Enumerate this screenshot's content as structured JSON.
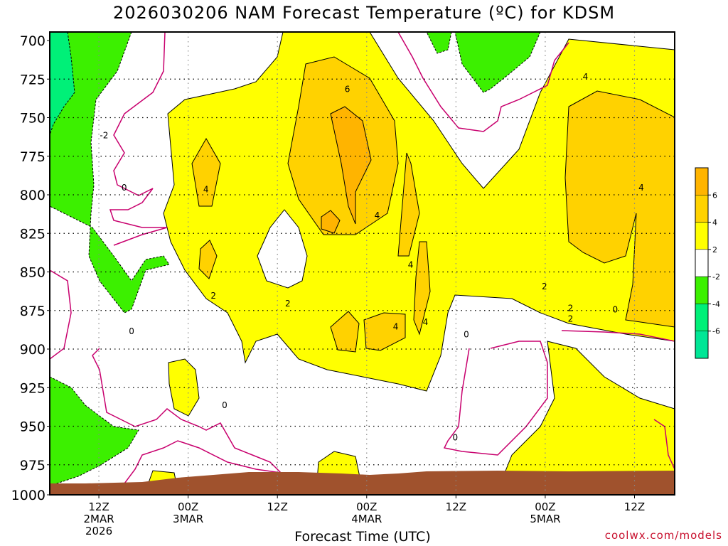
{
  "chart_data": {
    "type": "heatmap",
    "title": "2026030206 NAM Forecast Temperature (ºC) for KDSM",
    "xlabel": "Forecast Time (UTC)",
    "ylabel": "",
    "credit": "coolwx.com/models",
    "y_axis": {
      "type": "pressure (hPa)",
      "range": [
        1000,
        700
      ],
      "inverted": true,
      "ticks": [
        700,
        725,
        750,
        775,
        800,
        825,
        850,
        875,
        900,
        925,
        950,
        975,
        1000
      ]
    },
    "x_axis": {
      "range_hours": [
        0,
        84
      ],
      "ticks": [
        {
          "hour": 6,
          "label1": "12Z",
          "label2": "2MAR",
          "label3": "2026"
        },
        {
          "hour": 18,
          "label1": "00Z",
          "label2": "3MAR",
          "label3": ""
        },
        {
          "hour": 30,
          "label1": "12Z",
          "label2": "",
          "label3": ""
        },
        {
          "hour": 42,
          "label1": "00Z",
          "label2": "4MAR",
          "label3": ""
        },
        {
          "hour": 54,
          "label1": "12Z",
          "label2": "",
          "label3": ""
        },
        {
          "hour": 66,
          "label1": "00Z",
          "label2": "5MAR",
          "label3": ""
        },
        {
          "hour": 78,
          "label1": "12Z",
          "label2": "",
          "label3": ""
        }
      ]
    },
    "grid": true,
    "legend": {
      "placement": "right",
      "labels": [
        "6",
        "4",
        "2",
        "-2",
        "-4",
        "-6"
      ],
      "colors": [
        "#ffb400",
        "#ffd200",
        "#ffff00",
        "#ffffff",
        "#3cf000",
        "#00f078",
        "#00e696"
      ]
    },
    "contour_labels": [
      {
        "t": 7.3,
        "p": 767,
        "text": "-2"
      },
      {
        "t": 10,
        "p": 801,
        "text": "0"
      },
      {
        "t": 11,
        "p": 894,
        "text": "0"
      },
      {
        "t": 21,
        "p": 802,
        "text": "4"
      },
      {
        "t": 22,
        "p": 871,
        "text": "2"
      },
      {
        "t": 23.5,
        "p": 942,
        "text": "0"
      },
      {
        "t": 32,
        "p": 876,
        "text": "2"
      },
      {
        "t": 40,
        "p": 737,
        "text": "6"
      },
      {
        "t": 44,
        "p": 819,
        "text": "4"
      },
      {
        "t": 46.5,
        "p": 891,
        "text": "4"
      },
      {
        "t": 48.5,
        "p": 851,
        "text": "4"
      },
      {
        "t": 50.5,
        "p": 888,
        "text": "4"
      },
      {
        "t": 56,
        "p": 896,
        "text": "0"
      },
      {
        "t": 54.5,
        "p": 963,
        "text": "0"
      },
      {
        "t": 66.5,
        "p": 865,
        "text": "2"
      },
      {
        "t": 70,
        "p": 879,
        "text": "2"
      },
      {
        "t": 70,
        "p": 886,
        "text": "2"
      },
      {
        "t": 72,
        "p": 729,
        "text": "4"
      },
      {
        "t": 76,
        "p": 880,
        "text": "0"
      },
      {
        "t": 79.5,
        "p": 801,
        "text": "4"
      }
    ],
    "temperature_regions": [
      {
        "band": "-2 to -4",
        "description": "cold pocket top-left 700–875 hPa, hours 0–15",
        "color": "#3cf000"
      },
      {
        "band": "-2 to -4",
        "description": "near-surface cold pocket 925–1000 hPa, hours 0–12",
        "color": "#3cf000"
      },
      {
        "band": "-2 to -4",
        "description": "upper cold pocket 700–730 hPa, hours 47–61",
        "color": "#3cf000"
      },
      {
        "band": "<-6",
        "description": "upper-left corner 700–740 hPa, hours 0–3",
        "color": "#00f078"
      },
      {
        "band": "2 to 4",
        "description": "warm layer 700–900 hPa, hours 16–84",
        "color": "#ffff00"
      },
      {
        "band": "4 to 6",
        "description": "warm pockets 730–890 hPa",
        "color": "#ffd200"
      },
      {
        "band": ">6",
        "description": "warm core ~750–780 hPa, hours 38–42",
        "color": "#ffb400"
      }
    ],
    "terrain_color": "#a0522d"
  }
}
